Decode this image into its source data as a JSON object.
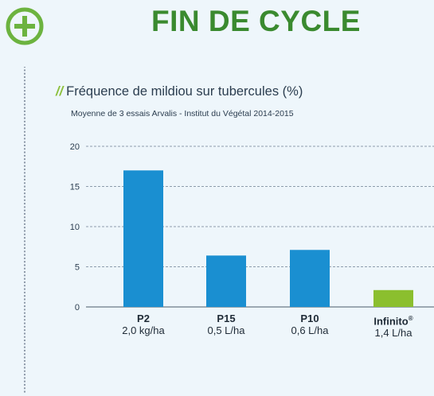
{
  "header": {
    "title": "FIN DE CYCLE",
    "icon": "plus-circle-icon",
    "accent": "#3a8a2f"
  },
  "chart_data": {
    "type": "bar",
    "title_prefix": "//",
    "title": "Fréquence de mildiou sur tubercules (%)",
    "subtitle": "Moyenne de 3 essais Arvalis - Institut du Végétal 2014-2015",
    "categories": [
      {
        "name": "P2",
        "dose": "2,0 kg/ha",
        "value": 17,
        "color": "#1a8fd1",
        "superscript": ""
      },
      {
        "name": "P15",
        "dose": "0,5 L/ha",
        "value": 6.4,
        "color": "#1a8fd1",
        "superscript": ""
      },
      {
        "name": "P10",
        "dose": "0,6 L/ha",
        "value": 7.1,
        "color": "#1a8fd1",
        "superscript": ""
      },
      {
        "name": "Infinito",
        "dose": "1,4 L/ha",
        "value": 2.1,
        "color": "#8bbf2e",
        "superscript": "®"
      }
    ],
    "yticks": [
      "0",
      "5",
      "10",
      "15",
      "20"
    ],
    "ylim": [
      0,
      20
    ],
    "grid": true,
    "xlabel": "",
    "ylabel": ""
  }
}
